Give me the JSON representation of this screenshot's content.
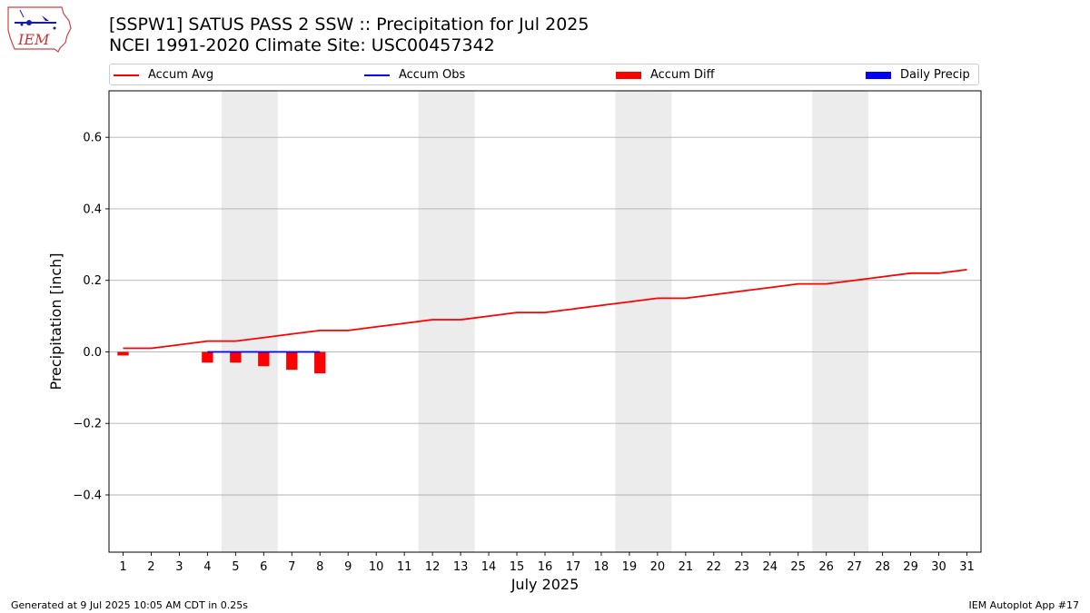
{
  "header": {
    "title_line1": "[SSPW1] SATUS PASS 2 SSW :: Precipitation for Jul 2025",
    "title_line2": "NCEI 1991-2020 Climate Site: USC00457342",
    "logo_text": "IEM"
  },
  "footer": {
    "left": "Generated at 9 Jul 2025 10:05 AM CDT in 0.25s",
    "right": "IEM Autoplot App #17"
  },
  "legend": [
    {
      "label": "Accum Avg",
      "color": "#ff0000",
      "kind": "line"
    },
    {
      "label": "Accum Obs",
      "color": "#0000ff",
      "kind": "line"
    },
    {
      "label": "Accum Diff",
      "color": "#ff0000",
      "kind": "bar"
    },
    {
      "label": "Daily Precip",
      "color": "#0000ff",
      "kind": "bar"
    }
  ],
  "chart_data": {
    "type": "line",
    "xlabel": "July 2025",
    "ylabel": "Precipitation [inch]",
    "ylim": [
      -0.56,
      0.73
    ],
    "xlim": [
      0.5,
      31.5
    ],
    "yticks": [
      -0.4,
      -0.2,
      0.0,
      0.2,
      0.4,
      0.6
    ],
    "ytick_labels": [
      "−0.4",
      "−0.2",
      "0.0",
      "0.2",
      "0.4",
      "0.6"
    ],
    "xticks": [
      1,
      2,
      3,
      4,
      5,
      6,
      7,
      8,
      9,
      10,
      11,
      12,
      13,
      14,
      15,
      16,
      17,
      18,
      19,
      20,
      21,
      22,
      23,
      24,
      25,
      26,
      27,
      28,
      29,
      30,
      31
    ],
    "grid": "horizontal",
    "weekend_bands": [
      [
        5,
        6
      ],
      [
        12,
        13
      ],
      [
        19,
        20
      ],
      [
        26,
        27
      ]
    ],
    "band_color": "#ececec",
    "accum_avg": {
      "name": "Accum Avg",
      "color": "#ff0000",
      "x": [
        1,
        2,
        3,
        4,
        5,
        6,
        7,
        8,
        9,
        10,
        11,
        12,
        13,
        14,
        15,
        16,
        17,
        18,
        19,
        20,
        21,
        22,
        23,
        24,
        25,
        26,
        27,
        28,
        29,
        30,
        31
      ],
      "values": [
        0.01,
        0.01,
        0.02,
        0.03,
        0.03,
        0.04,
        0.05,
        0.06,
        0.06,
        0.07,
        0.08,
        0.09,
        0.09,
        0.1,
        0.11,
        0.11,
        0.12,
        0.13,
        0.14,
        0.15,
        0.15,
        0.16,
        0.17,
        0.18,
        0.19,
        0.19,
        0.2,
        0.21,
        0.22,
        0.22,
        0.23
      ]
    },
    "accum_obs": {
      "name": "Accum Obs",
      "color": "#0000ff",
      "x": [
        4,
        5,
        6,
        7,
        8
      ],
      "values": [
        0.0,
        0.0,
        0.0,
        0.0,
        0.0
      ]
    },
    "accum_diff": {
      "name": "Accum Diff",
      "color": "#ff0000",
      "x": [
        1,
        4,
        5,
        6,
        7,
        8
      ],
      "values": [
        -0.01,
        -0.03,
        -0.03,
        -0.04,
        -0.05,
        -0.06
      ]
    },
    "daily_precip": {
      "name": "Daily Precip",
      "color": "#0000ff",
      "x": [],
      "values": []
    }
  }
}
